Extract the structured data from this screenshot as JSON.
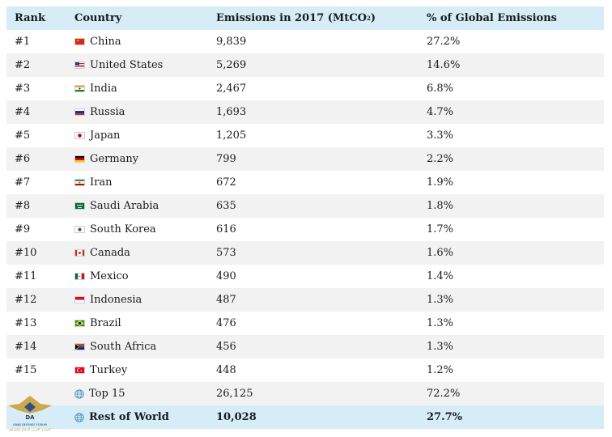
{
  "headers": {
    "rank": "Rank",
    "country": "Country",
    "emissions_prefix": "Emissions in 2017 (MtCO",
    "emissions_sub": "2",
    "emissions_suffix": ")",
    "pct": "% of Global Emissions"
  },
  "rows": [
    {
      "rank": "#1",
      "country": "China",
      "flag": "china-flag-icon",
      "emissions": "9,839",
      "pct": "27.2%"
    },
    {
      "rank": "#2",
      "country": "United States",
      "flag": "usa-flag-icon",
      "emissions": "5,269",
      "pct": "14.6%"
    },
    {
      "rank": "#3",
      "country": "India",
      "flag": "india-flag-icon",
      "emissions": "2,467",
      "pct": "6.8%"
    },
    {
      "rank": "#4",
      "country": "Russia",
      "flag": "russia-flag-icon",
      "emissions": "1,693",
      "pct": "4.7%"
    },
    {
      "rank": "#5",
      "country": "Japan",
      "flag": "japan-flag-icon",
      "emissions": "1,205",
      "pct": "3.3%"
    },
    {
      "rank": "#6",
      "country": "Germany",
      "flag": "germany-flag-icon",
      "emissions": "799",
      "pct": "2.2%"
    },
    {
      "rank": "#7",
      "country": "Iran",
      "flag": "iran-flag-icon",
      "emissions": "672",
      "pct": "1.9%"
    },
    {
      "rank": "#8",
      "country": "Saudi Arabia",
      "flag": "saudi-arabia-flag-icon",
      "emissions": "635",
      "pct": "1.8%"
    },
    {
      "rank": "#9",
      "country": "South Korea",
      "flag": "south-korea-flag-icon",
      "emissions": "616",
      "pct": "1.7%"
    },
    {
      "rank": "#10",
      "country": "Canada",
      "flag": "canada-flag-icon",
      "emissions": "573",
      "pct": "1.6%"
    },
    {
      "rank": "#11",
      "country": "Mexico",
      "flag": "mexico-flag-icon",
      "emissions": "490",
      "pct": "1.4%"
    },
    {
      "rank": "#12",
      "country": "Indonesia",
      "flag": "indonesia-flag-icon",
      "emissions": "487",
      "pct": "1.3%"
    },
    {
      "rank": "#13",
      "country": "Brazil",
      "flag": "brazil-flag-icon",
      "emissions": "476",
      "pct": "1.3%"
    },
    {
      "rank": "#14",
      "country": "South Africa",
      "flag": "south-africa-flag-icon",
      "emissions": "456",
      "pct": "1.3%"
    },
    {
      "rank": "#15",
      "country": "Turkey",
      "flag": "turkey-flag-icon",
      "emissions": "448",
      "pct": "1.2%"
    }
  ],
  "totals": [
    {
      "rank": "",
      "country": "Top 15",
      "icon": "globe-icon",
      "emissions": "26,125",
      "pct": "72.2%"
    },
    {
      "rank": "",
      "country": "Rest of World",
      "icon": "globe-icon",
      "emissions": "10,028",
      "pct": "27.7%"
    }
  ],
  "colors": {
    "header_bg": "#d6edf7",
    "stripe_bg": "#f2f2f2",
    "highlight_bg": "#d6edf7"
  },
  "watermark": {
    "initials": "DA",
    "name": "ARAB DEFENSE FORUM",
    "arabic": "المنتدى العربي للدفاع والتسليح"
  }
}
